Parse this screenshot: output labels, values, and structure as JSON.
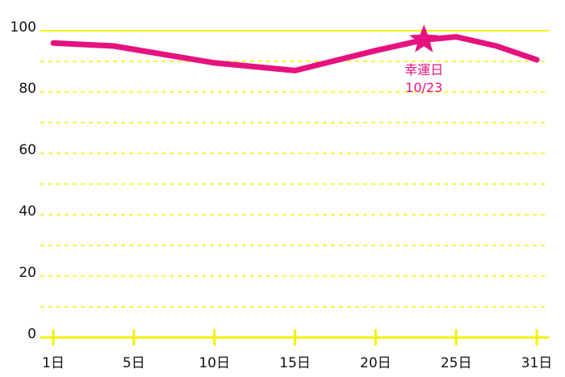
{
  "chart_data": {
    "type": "line",
    "x": [
      1,
      4,
      10,
      15,
      20,
      23,
      25,
      28,
      31
    ],
    "series": [
      {
        "color": "#e6127f",
        "values": [
          96,
          95,
          89.5,
          87,
          93.5,
          97,
          98,
          95,
          90.5
        ]
      }
    ],
    "xlim": [
      1,
      31
    ],
    "xticks": [
      {
        "value": 1,
        "label": "1日"
      },
      {
        "value": 5,
        "label": "5日"
      },
      {
        "value": 10,
        "label": "10日"
      },
      {
        "value": 15,
        "label": "15日"
      },
      {
        "value": 20,
        "label": "20日"
      },
      {
        "value": 25,
        "label": "25日"
      },
      {
        "value": 31,
        "label": "31日"
      }
    ],
    "ylim": [
      0,
      100
    ],
    "yticks": [
      0,
      20,
      40,
      60,
      80,
      100
    ],
    "minor_yticks": [
      10,
      30,
      50,
      70,
      90
    ],
    "grid_color": "#f2f200",
    "annotation": {
      "text": "幸運日",
      "date": "10/23",
      "x": 23,
      "y": 97
    }
  }
}
